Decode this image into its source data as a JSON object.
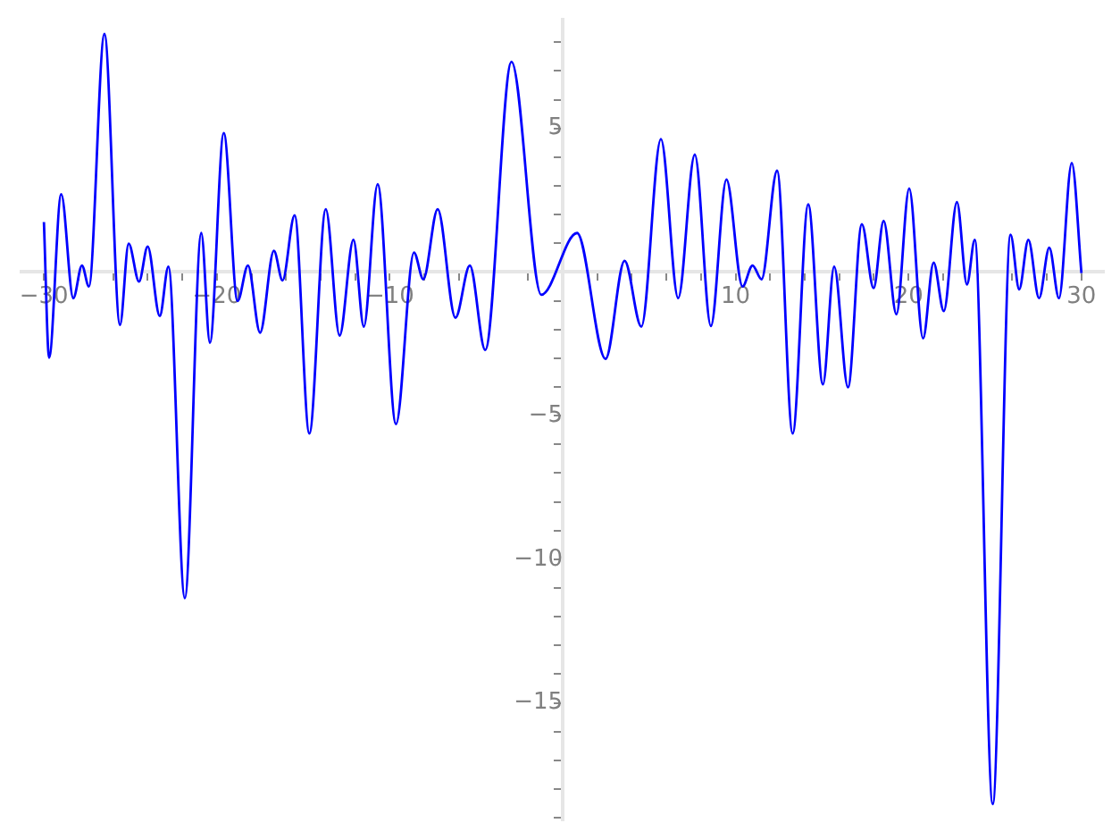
{
  "chart_data": {
    "type": "line",
    "x": [
      -30,
      -29.7,
      -29.0,
      -28.3,
      -27.8,
      -27.4,
      -26.5,
      -25.6,
      -25.1,
      -24.5,
      -24.0,
      -23.3,
      -22.8,
      -21.85,
      -20.9,
      -20.4,
      -19.6,
      -18.8,
      -18.2,
      -17.5,
      -16.7,
      -16.2,
      -15.5,
      -14.65,
      -13.7,
      -12.9,
      -12.1,
      -11.5,
      -10.7,
      -9.64,
      -8.6,
      -8.06,
      -7.23,
      -6.2,
      -5.37,
      -4.48,
      -2.96,
      -1.24,
      0.83,
      2.48,
      3.58,
      4.55,
      5.68,
      6.68,
      7.64,
      8.57,
      9.47,
      10.4,
      10.98,
      11.5,
      12.4,
      13.3,
      14.2,
      15.05,
      15.7,
      16.5,
      17.3,
      17.98,
      18.56,
      19.3,
      20.04,
      20.84,
      21.45,
      22.04,
      22.8,
      23.38,
      23.83,
      24.87,
      25.9,
      26.4,
      26.93,
      27.55,
      28.14,
      28.7,
      29.44,
      30
    ],
    "series": [
      {
        "color": "#0000ff",
        "values": [
          1.74,
          -2.98,
          2.71,
          -0.91,
          0.23,
          -0.5,
          8.29,
          -1.84,
          0.99,
          -0.33,
          0.89,
          -1.53,
          0.19,
          -11.35,
          1.36,
          -2.46,
          4.84,
          -1.01,
          0.23,
          -2.11,
          0.74,
          -0.29,
          1.98,
          -5.62,
          2.19,
          -2.21,
          1.12,
          -1.9,
          3.06,
          -5.29,
          0.68,
          -0.25,
          2.19,
          -1.59,
          0.23,
          -2.71,
          7.32,
          -0.79,
          1.36,
          -3.02,
          0.39,
          -1.9,
          4.63,
          -0.91,
          4.09,
          -1.88,
          3.22,
          -0.5,
          0.23,
          -0.25,
          3.53,
          -5.62,
          2.36,
          -3.91,
          0.19,
          -4.01,
          1.67,
          -0.56,
          1.78,
          -1.47,
          2.91,
          -2.31,
          0.33,
          -1.36,
          2.44,
          -0.43,
          1.12,
          -18.52,
          1.3,
          -0.6,
          1.12,
          -0.91,
          0.85,
          -0.91,
          3.8,
          -0.04
        ]
      }
    ],
    "xlim": [
      -31.3,
      31.3
    ],
    "ylim": [
      -19.1,
      8.8
    ],
    "xticks": [
      -30,
      {
        "value": -28,
        "label": null
      },
      {
        "value": -26,
        "label": null
      },
      {
        "value": -24,
        "label": null
      },
      {
        "value": -22,
        "label": null
      },
      -20,
      {
        "value": -18,
        "label": null
      },
      {
        "value": -16,
        "label": null
      },
      {
        "value": -14,
        "label": null
      },
      {
        "value": -12,
        "label": null
      },
      -10,
      {
        "value": -8,
        "label": null
      },
      {
        "value": -6,
        "label": null
      },
      {
        "value": -4,
        "label": null
      },
      {
        "value": -2,
        "label": null
      },
      {
        "value": 2,
        "label": null
      },
      {
        "value": 4,
        "label": null
      },
      {
        "value": 6,
        "label": null
      },
      {
        "value": 8,
        "label": null
      },
      10,
      {
        "value": 12,
        "label": null
      },
      {
        "value": 14,
        "label": null
      },
      {
        "value": 16,
        "label": null
      },
      {
        "value": 18,
        "label": null
      },
      20,
      {
        "value": 22,
        "label": null
      },
      {
        "value": 24,
        "label": null
      },
      {
        "value": 26,
        "label": null
      },
      {
        "value": 28,
        "label": null
      },
      30
    ],
    "yticks": [
      {
        "value": -19,
        "label": null
      },
      {
        "value": -18,
        "label": null
      },
      {
        "value": -17,
        "label": null
      },
      {
        "value": -16,
        "label": null
      },
      -15,
      {
        "value": -14,
        "label": null
      },
      {
        "value": -13,
        "label": null
      },
      {
        "value": -12,
        "label": null
      },
      {
        "value": -11,
        "label": null
      },
      -10,
      {
        "value": -9,
        "label": null
      },
      {
        "value": -8,
        "label": null
      },
      {
        "value": -7,
        "label": null
      },
      {
        "value": -6,
        "label": null
      },
      -5,
      {
        "value": -4,
        "label": null
      },
      {
        "value": -3,
        "label": null
      },
      {
        "value": -2,
        "label": null
      },
      {
        "value": -1,
        "label": null
      },
      {
        "value": 1,
        "label": null
      },
      {
        "value": 2,
        "label": null
      },
      {
        "value": 3,
        "label": null
      },
      {
        "value": 4,
        "label": null
      },
      5,
      {
        "value": 6,
        "label": null
      },
      {
        "value": 7,
        "label": null
      },
      {
        "value": 8,
        "label": null
      }
    ],
    "grid": false,
    "legend": false
  }
}
